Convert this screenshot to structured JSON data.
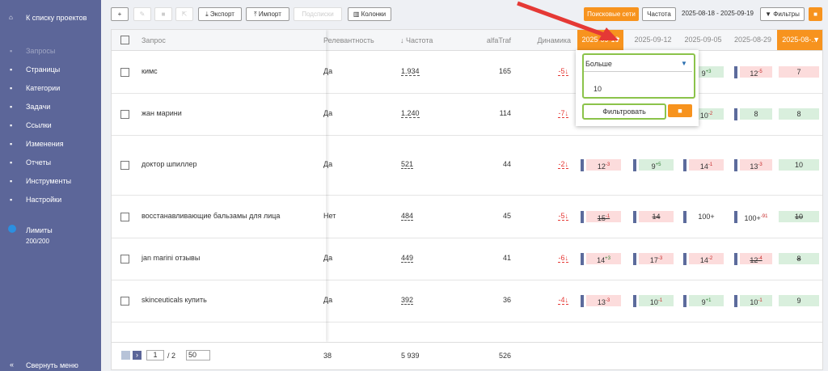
{
  "sidebar": {
    "back": "К списку проектов",
    "items": [
      "Запросы",
      "Страницы",
      "Категории",
      "Задачи",
      "Ссылки",
      "Изменения",
      "Отчеты",
      "Инструменты",
      "Настройки"
    ],
    "limits_label": "Лимиты",
    "limits_value": "200/200",
    "collapse": "Свернуть меню"
  },
  "toolbar": {
    "add": "+",
    "export": "Экспорт",
    "import": "Импорт",
    "sublists": "Подсписки",
    "columns": "Колонки",
    "networks": "Поисковые сети",
    "frequency": "Частота",
    "date_range": "2025-08-18 - 2025-09-19",
    "filters": "Фильтры"
  },
  "table": {
    "headers": [
      "Запрос",
      "Релевантность",
      "Частота",
      "alfaTraf",
      "Динамика"
    ],
    "date_headers": [
      "2025-09-19",
      "2025-09-12",
      "2025-09-05",
      "2025-08-29",
      "2025-08-..."
    ],
    "rows": [
      {
        "query": "кимс",
        "relevance": "Да",
        "frequency": "1.934",
        "traffic": "165",
        "dynamics": "-5",
        "cells": [
          null,
          null,
          {
            "value": "9",
            "delta": "+3",
            "tone": "green"
          },
          {
            "value": "12",
            "delta": "-5",
            "tone": "red"
          },
          {
            "value": "7",
            "tone": "red"
          }
        ]
      },
      {
        "query": "жан марини",
        "relevance": "Да",
        "frequency": "1.240",
        "traffic": "114",
        "dynamics": "-7",
        "cells": [
          null,
          null,
          {
            "value": "10",
            "delta": "-2",
            "tone": "green"
          },
          {
            "value": "8",
            "tone": "green"
          },
          {
            "value": "8",
            "tone": "green"
          }
        ]
      },
      {
        "query": "доктор шпиллер",
        "relevance": "Да",
        "frequency": "521",
        "traffic": "44",
        "dynamics": "-2",
        "cells": [
          {
            "value": "12",
            "delta": "-3",
            "tone": "red"
          },
          {
            "value": "9",
            "delta": "+5",
            "tone": "green"
          },
          {
            "value": "14",
            "delta": "-1",
            "tone": "red"
          },
          {
            "value": "13",
            "delta": "-3",
            "tone": "red"
          },
          {
            "value": "10",
            "tone": "green"
          }
        ]
      },
      {
        "query": "восстанавливающие бальзамы для лица",
        "relevance": "Нет",
        "frequency": "484",
        "traffic": "45",
        "dynamics": "-5",
        "cells": [
          {
            "value": "15",
            "delta": "-1",
            "tone": "red",
            "struck": true
          },
          {
            "value": "14",
            "tone": "red",
            "struck": true
          },
          {
            "value": "100+",
            "tone": "white"
          },
          {
            "value": "100+",
            "delta": "-91",
            "tone": "white"
          },
          {
            "value": "10",
            "tone": "green",
            "struck": true
          }
        ]
      },
      {
        "query": "jan marini отзывы",
        "relevance": "Да",
        "frequency": "449",
        "traffic": "41",
        "dynamics": "-6",
        "cells": [
          {
            "value": "14",
            "delta": "+3",
            "tone": "red"
          },
          {
            "value": "17",
            "delta": "-3",
            "tone": "red"
          },
          {
            "value": "14",
            "delta": "-2",
            "tone": "red"
          },
          {
            "value": "12",
            "delta": "-4",
            "tone": "red",
            "struck": true
          },
          {
            "value": "8",
            "tone": "green",
            "struck": true
          }
        ]
      },
      {
        "query": "skinceuticals купить",
        "relevance": "Да",
        "frequency": "392",
        "traffic": "36",
        "dynamics": "-4",
        "cells": [
          {
            "value": "13",
            "delta": "-3",
            "tone": "red"
          },
          {
            "value": "10",
            "delta": "-1",
            "tone": "green"
          },
          {
            "value": "9",
            "delta": "+1",
            "tone": "green"
          },
          {
            "value": "10",
            "delta": "-1",
            "tone": "green"
          },
          {
            "value": "9",
            "tone": "green"
          }
        ]
      }
    ],
    "footer": {
      "page": "1",
      "pages": "/ 2",
      "per_page": "50",
      "relevance_total": "38",
      "frequency_total": "5 939",
      "traffic_total": "526"
    }
  },
  "filter_popup": {
    "condition": "Больше",
    "value": "10",
    "apply": "Фильтровать"
  }
}
